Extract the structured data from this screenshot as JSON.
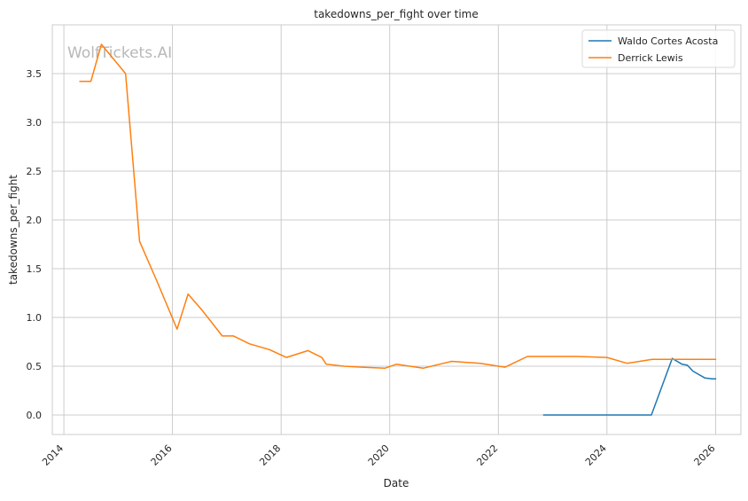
{
  "chart_data": {
    "type": "line",
    "title": "takedowns_per_fight over time",
    "xlabel": "Date",
    "ylabel": "takedowns_per_fight",
    "watermark": "WolfTickets.AI",
    "x_range": [
      "2013-10-15",
      "2026-06-20"
    ],
    "ylim": [
      -0.2,
      4.0
    ],
    "x_ticks": [
      "2014",
      "2016",
      "2018",
      "2020",
      "2022",
      "2024",
      "2026"
    ],
    "y_ticks": [
      "0.0",
      "0.5",
      "1.0",
      "1.5",
      "2.0",
      "2.5",
      "3.0",
      "3.5"
    ],
    "grid": true,
    "legend_position": "top-right",
    "series": [
      {
        "name": "Waldo Cortes Acosta",
        "color": "#1f77b4",
        "points": [
          [
            "2022-10-29",
            0.0
          ],
          [
            "2023-06-01",
            0.0
          ],
          [
            "2024-01-01",
            0.0
          ],
          [
            "2024-10-26",
            0.0
          ],
          [
            "2025-03-15",
            0.58
          ],
          [
            "2025-05-20",
            0.52
          ],
          [
            "2025-06-25",
            0.51
          ],
          [
            "2025-08-01",
            0.45
          ],
          [
            "2025-10-20",
            0.38
          ],
          [
            "2025-12-10",
            0.37
          ],
          [
            "2026-01-05",
            0.37
          ]
        ]
      },
      {
        "name": "Derrick Lewis",
        "color": "#ff7f0e",
        "points": [
          [
            "2014-04-15",
            3.42
          ],
          [
            "2014-07-01",
            3.42
          ],
          [
            "2014-09-10",
            3.8
          ],
          [
            "2015-02-20",
            3.5
          ],
          [
            "2015-05-25",
            1.78
          ],
          [
            "2015-09-25",
            1.35
          ],
          [
            "2016-02-01",
            0.88
          ],
          [
            "2016-04-15",
            1.24
          ],
          [
            "2016-07-15",
            1.08
          ],
          [
            "2016-12-01",
            0.81
          ],
          [
            "2017-02-15",
            0.81
          ],
          [
            "2017-06-01",
            0.73
          ],
          [
            "2017-10-15",
            0.67
          ],
          [
            "2018-02-05",
            0.59
          ],
          [
            "2018-07-01",
            0.66
          ],
          [
            "2018-10-01",
            0.59
          ],
          [
            "2018-11-01",
            0.52
          ],
          [
            "2019-03-01",
            0.5
          ],
          [
            "2019-07-01",
            0.49
          ],
          [
            "2019-12-01",
            0.48
          ],
          [
            "2020-02-15",
            0.52
          ],
          [
            "2020-08-15",
            0.48
          ],
          [
            "2021-02-20",
            0.55
          ],
          [
            "2021-09-01",
            0.53
          ],
          [
            "2022-02-15",
            0.49
          ],
          [
            "2022-07-15",
            0.6
          ],
          [
            "2023-03-01",
            0.6
          ],
          [
            "2023-06-15",
            0.6
          ],
          [
            "2024-01-01",
            0.59
          ],
          [
            "2024-05-15",
            0.53
          ],
          [
            "2024-11-01",
            0.57
          ],
          [
            "2025-06-01",
            0.57
          ],
          [
            "2026-01-05",
            0.57
          ]
        ]
      }
    ]
  }
}
